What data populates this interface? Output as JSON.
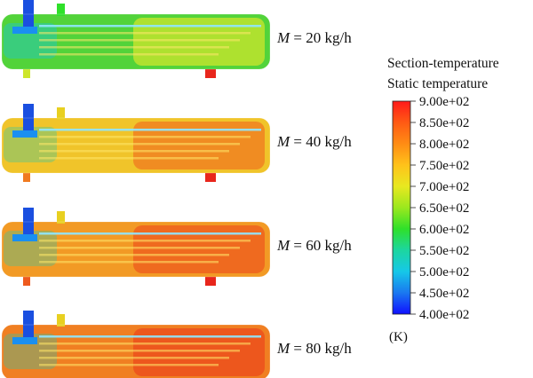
{
  "legend": {
    "title_line1": "Section-temperature",
    "title_line2": "Static temperature",
    "unit": "(K)",
    "ticks": [
      "9.00e+02",
      "8.50e+02",
      "8.00e+02",
      "7.50e+02",
      "7.00e+02",
      "6.50e+02",
      "6.00e+02",
      "5.50e+02",
      "5.00e+02",
      "4.50e+02",
      "4.00e+02"
    ],
    "colorscale": [
      "#ff1a1a",
      "#ff5a14",
      "#ff8c14",
      "#ffc21a",
      "#e8e820",
      "#9be81e",
      "#2fe02a",
      "#1cd6a0",
      "#16c8e8",
      "#1a78f0",
      "#1010ff"
    ]
  },
  "cases": [
    {
      "label_var": "M",
      "label_rest": " = 20 kg/h",
      "body_color": "#52d33a",
      "accent_color": "#cde62c",
      "outlet_color": "#e8261c",
      "inlet_color": "#1a4fe0"
    },
    {
      "label_var": "M",
      "label_rest": " = 40 kg/h",
      "body_color": "#f0c42a",
      "accent_color": "#f07a20",
      "outlet_color": "#e8261c",
      "inlet_color": "#1a4fe0"
    },
    {
      "label_var": "M",
      "label_rest": " = 60 kg/h",
      "body_color": "#f29a25",
      "accent_color": "#ee5a1e",
      "outlet_color": "#e8261c",
      "inlet_color": "#1a4fe0"
    },
    {
      "label_var": "M",
      "label_rest": " = 80 kg/h",
      "body_color": "#f07f22",
      "accent_color": "#ec4a1c",
      "outlet_color": "#e82a1c",
      "inlet_color": "#1a4fe0"
    }
  ]
}
